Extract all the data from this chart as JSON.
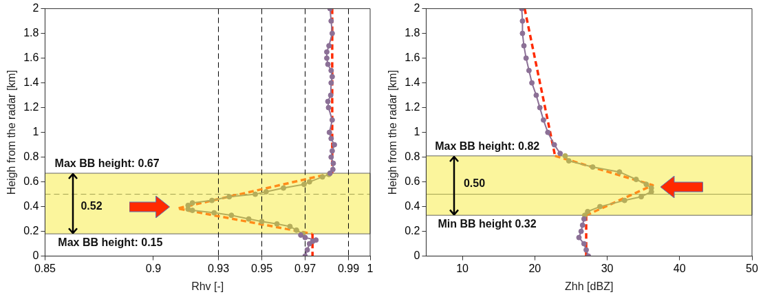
{
  "chart_data": [
    {
      "type": "line",
      "xlabel": "Rhv [-]",
      "ylabel": "Heigh from the radar [km]",
      "xlim": [
        0.85,
        1
      ],
      "xticks": [
        0.85,
        0.9,
        0.93,
        0.95,
        0.97,
        0.99,
        1
      ],
      "ylim": [
        0,
        2
      ],
      "yticks": [
        0,
        0.2,
        0.4,
        0.6,
        0.8,
        1,
        1.2,
        1.4,
        1.6,
        1.8,
        2
      ],
      "grid": false,
      "legend": false,
      "series": [
        {
          "color": "#8c7096",
          "marker": "circle",
          "line_style": "solid",
          "x": [
            0.9815,
            0.982,
            0.9825,
            0.981,
            0.98,
            0.98,
            0.9805,
            0.982,
            0.9825,
            0.982,
            0.9818,
            0.9805,
            0.9808,
            0.9825,
            0.9812,
            0.982,
            0.9835,
            0.9825,
            0.982,
            0.983,
            0.9828,
            0.9815,
            null,
            0.968,
            0.97,
            0.975,
            0.9735,
            0.972,
            0.971,
            0.97
          ],
          "values": [
            2,
            1.9,
            1.8,
            1.7,
            1.65,
            1.6,
            1.55,
            1.5,
            1.45,
            1.4,
            1.3,
            1.25,
            1.2,
            1.1,
            1,
            0.95,
            0.9,
            0.85,
            0.8,
            0.75,
            0.7,
            0.67,
            null,
            0.17,
            0.15,
            0.13,
            0.12,
            0.1,
            0.05,
            0
          ]
        },
        {
          "color": "#b5ad5a",
          "marker": "circle",
          "line_style": "solid",
          "x": [
            0.981,
            0.978,
            0.972,
            0.9695,
            0.96,
            0.952,
            0.947,
            0.935,
            0.927,
            0.918,
            0.916,
            0.916,
            0.918,
            0.928,
            0.936,
            0.944,
            0.95,
            0.957,
            0.963,
            0.966,
            0.969
          ],
          "values": [
            0.66,
            0.64,
            0.6,
            0.58,
            0.55,
            0.52,
            0.5,
            0.48,
            0.45,
            0.43,
            0.41,
            0.38,
            0.37,
            0.35,
            0.33,
            0.3,
            0.28,
            0.26,
            0.24,
            0.21,
            0.18
          ]
        },
        {
          "color": "#ff2a00",
          "marker": "none",
          "line_style": "dashed",
          "x": [
            0.9825,
            0.9825,
            null,
            0.9734,
            0.9734
          ],
          "values": [
            2,
            0.67,
            null,
            0.18,
            0
          ]
        },
        {
          "color": "#ff8c1a",
          "marker": "none",
          "line_style": "dashed",
          "x": [
            0.9825,
            0.911,
            0.9734
          ],
          "values": [
            0.67,
            0.385,
            0.18
          ]
        }
      ],
      "bands": [
        {
          "axis": "y",
          "from": 0.18,
          "to": 0.67,
          "color": "#fbf59c"
        }
      ],
      "ref_lines": [
        {
          "axis": "y",
          "value": 0.5,
          "color": "#a0a050",
          "line_style": "dashed"
        },
        {
          "axis": "x",
          "value": 0.93,
          "color": "#000000",
          "line_style": "dashed"
        },
        {
          "axis": "x",
          "value": 0.95,
          "color": "#000000",
          "line_style": "dashed"
        },
        {
          "axis": "x",
          "value": 0.97,
          "color": "#000000",
          "line_style": "dashed"
        },
        {
          "axis": "x",
          "value": 0.99,
          "color": "#000000",
          "line_style": "dashed"
        }
      ],
      "annotations": [
        {
          "text": "Max BB height: 0.67",
          "y": 0.67
        },
        "0.52",
        {
          "text": "Max BB height: 0.15",
          "y": 0.18
        }
      ]
    },
    {
      "type": "line",
      "xlabel": "Zhh [dBZ]",
      "ylabel": "Heigh from the radar [km]",
      "xlim": [
        5,
        50
      ],
      "xticks": [
        10,
        20,
        30,
        40,
        50
      ],
      "ylim": [
        0,
        2
      ],
      "yticks": [
        0,
        0.2,
        0.4,
        0.6,
        0.8,
        1,
        1.2,
        1.4,
        1.6,
        1.8,
        2
      ],
      "grid": false,
      "legend": false,
      "series": [
        {
          "color": "#8c7096",
          "marker": "circle",
          "line_style": "solid",
          "x": [
            18.2,
            18.3,
            18.3,
            18.5,
            18.8,
            19.2,
            19.6,
            20.2,
            20.7,
            21.2,
            21.8,
            22.7,
            23.5,
            null,
            26.8,
            26.6,
            26.4,
            26.1,
            26.8,
            27.1,
            27.4
          ],
          "values": [
            2,
            1.9,
            1.8,
            1.7,
            1.6,
            1.5,
            1.4,
            1.3,
            1.2,
            1.1,
            1,
            0.9,
            0.83,
            null,
            0.3,
            0.25,
            0.2,
            0.15,
            0.1,
            0.05,
            0
          ]
        },
        {
          "color": "#b5ad5a",
          "marker": "circle",
          "line_style": "solid",
          "x": [
            24.2,
            24.7,
            28,
            31.7,
            34,
            35.4,
            36.1,
            36.1,
            34.7,
            32.4,
            29,
            27.3,
            26.9
          ],
          "values": [
            0.81,
            0.77,
            0.72,
            0.68,
            0.62,
            0.58,
            0.55,
            0.52,
            0.48,
            0.45,
            0.4,
            0.36,
            0.33
          ]
        },
        {
          "color": "#ff2a00",
          "marker": "none",
          "line_style": "dashed",
          "x": [
            18.6,
            22.8,
            null,
            27.1,
            27.1
          ],
          "values": [
            2,
            0.81,
            null,
            0.33,
            0
          ]
        },
        {
          "color": "#ff8c1a",
          "marker": "none",
          "line_style": "dashed",
          "x": [
            22.8,
            36.3,
            27.1
          ],
          "values": [
            0.81,
            0.573,
            0.33
          ]
        }
      ],
      "bands": [
        {
          "axis": "y",
          "from": 0.33,
          "to": 0.81,
          "color": "#fbf59c"
        }
      ],
      "ref_lines": [
        {
          "axis": "y",
          "value": 0.5,
          "color": "#a0a050",
          "line_style": "solid"
        }
      ],
      "annotations": [
        {
          "text": "Max BB height: 0.82",
          "y": 0.81
        },
        "0.50",
        {
          "text": "Min BB height 0.32",
          "y": 0.33
        }
      ]
    }
  ]
}
